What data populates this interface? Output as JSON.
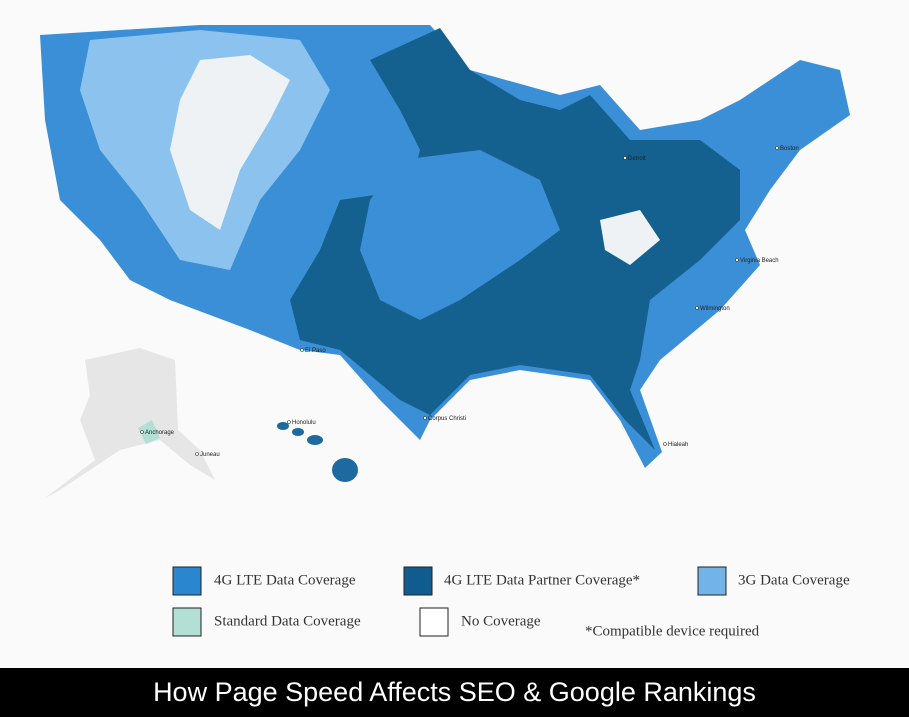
{
  "map": {
    "labels": [
      "Anchorage",
      "Juneau",
      "Honolulu",
      "Corpus Christi",
      "Hialeah",
      "Virginia Beach",
      "Wilmington",
      "Detroit",
      "Boston",
      "El Paso"
    ]
  },
  "legend": {
    "items": [
      {
        "label": "4G LTE Data Coverage",
        "color": "#2a86cf"
      },
      {
        "label": "4G LTE Data Partner Coverage*",
        "color": "#115c8f"
      },
      {
        "label": "3G Data Coverage",
        "color": "#72b3e8"
      },
      {
        "label": "Standard Data Coverage",
        "color": "#b3e0d4"
      },
      {
        "label": "No Coverage",
        "color": "#ffffff"
      }
    ],
    "note": "*Compatible device required"
  },
  "caption": "How Page Speed Affects SEO & Google Rankings"
}
